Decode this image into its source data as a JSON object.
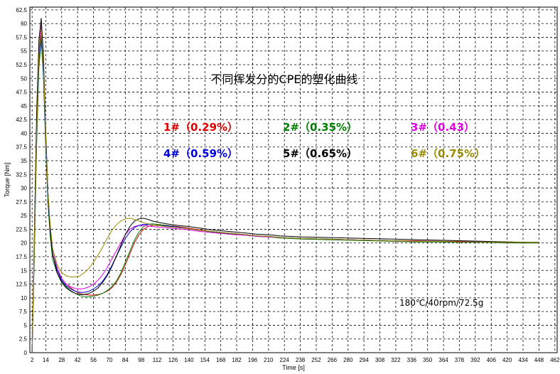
{
  "chart_data": {
    "type": "line",
    "title": "不同挥发分的CPE的塑化曲线",
    "xlabel": "Time [s]",
    "ylabel": "Torque [Nm]",
    "xlim": [
      0,
      464
    ],
    "ylim": [
      0,
      63
    ],
    "grid": true,
    "x_ticks": [
      "2",
      "14",
      "28",
      "42",
      "56",
      "70",
      "84",
      "98",
      "112",
      "126",
      "140",
      "154",
      "168",
      "182",
      "196",
      "210",
      "224",
      "238",
      "252",
      "266",
      "280",
      "294",
      "308",
      "322",
      "336",
      "350",
      "364",
      "378",
      "392",
      "406",
      "420",
      "434",
      "448",
      "462"
    ],
    "y_ticks": [
      "0",
      "2.5",
      "5",
      "7.5",
      "10",
      "12.5",
      "15",
      "17.5",
      "20",
      "22.5",
      "25",
      "27.5",
      "30",
      "32.5",
      "35",
      "37.5",
      "40",
      "42.5",
      "45",
      "47.5",
      "50",
      "52.5",
      "55",
      "57.5",
      "60",
      "62.5"
    ],
    "annotation": "180℃/40rpm/72.5g",
    "series": [
      {
        "name": "1#（0.29%）",
        "color": "#e00000",
        "x": [
          2,
          4,
          6,
          8,
          10,
          12,
          14,
          16,
          18,
          20,
          24,
          28,
          32,
          36,
          40,
          44,
          48,
          52,
          56,
          60,
          64,
          68,
          72,
          76,
          80,
          84,
          88,
          92,
          96,
          100,
          104,
          108,
          112,
          120,
          130,
          140,
          150,
          160,
          170,
          180,
          190,
          200,
          210,
          220,
          240,
          260,
          280,
          300,
          320,
          340,
          360,
          380,
          400,
          420,
          440,
          448
        ],
        "y": [
          0,
          20,
          40,
          54,
          59,
          52,
          38,
          28,
          22,
          18,
          15,
          13.5,
          12.5,
          11.8,
          11.2,
          10.8,
          10.6,
          10.5,
          10.5,
          10.6,
          10.8,
          11.2,
          11.8,
          12.8,
          14.2,
          16,
          18,
          20,
          21.5,
          22.5,
          23,
          23.2,
          23.3,
          23.2,
          23,
          22.7,
          22.4,
          22.1,
          21.9,
          21.7,
          21.5,
          21.3,
          21.2,
          21,
          20.8,
          20.7,
          20.6,
          20.5,
          20.4,
          20.4,
          20.3,
          20.3,
          20.2,
          20.2,
          20.1,
          20.1
        ]
      },
      {
        "name": "2#（0.35%）",
        "color": "#008000",
        "x": [
          2,
          4,
          6,
          8,
          10,
          12,
          14,
          16,
          18,
          20,
          24,
          28,
          32,
          36,
          40,
          44,
          48,
          52,
          56,
          60,
          64,
          68,
          72,
          76,
          80,
          84,
          88,
          92,
          96,
          100,
          104,
          108,
          112,
          120,
          130,
          140,
          150,
          160,
          170,
          180,
          190,
          200,
          210,
          220,
          240,
          260,
          280,
          300,
          320,
          340,
          360,
          380,
          400,
          420,
          440,
          448
        ],
        "y": [
          0,
          18,
          38,
          52,
          57,
          50,
          37,
          27,
          21,
          17,
          14.5,
          13,
          12,
          11.3,
          10.8,
          10.4,
          10.2,
          10.2,
          10.3,
          10.5,
          10.8,
          11.3,
          12,
          13,
          14.5,
          16.5,
          18.5,
          20.5,
          22,
          23,
          23.4,
          23.5,
          23.4,
          23.2,
          22.9,
          22.6,
          22.3,
          22,
          21.8,
          21.6,
          21.4,
          21.2,
          21.1,
          20.9,
          20.7,
          20.6,
          20.5,
          20.4,
          20.3,
          20.2,
          20.2,
          20.1,
          20.1,
          20,
          20,
          20
        ]
      },
      {
        "name": "3#（0.43）",
        "color": "#e000e0",
        "x": [
          2,
          4,
          6,
          8,
          10,
          12,
          14,
          16,
          18,
          20,
          24,
          28,
          32,
          36,
          40,
          44,
          48,
          52,
          56,
          60,
          64,
          68,
          72,
          76,
          80,
          84,
          88,
          92,
          96,
          100,
          104,
          108,
          112,
          120,
          130,
          140,
          150,
          160,
          170,
          180,
          190,
          200,
          210,
          220,
          240,
          260,
          280,
          300,
          320,
          340,
          360,
          380,
          400,
          420,
          440,
          448
        ],
        "y": [
          0,
          22,
          42,
          55,
          60,
          53,
          40,
          29,
          23,
          19,
          15.5,
          13.5,
          12.5,
          12,
          11.7,
          11.6,
          11.7,
          12,
          12.5,
          13.2,
          14.2,
          15.5,
          17,
          18.5,
          20,
          21.5,
          22.5,
          23,
          23.2,
          23.2,
          23.1,
          23,
          22.9,
          22.8,
          22.6,
          22.4,
          22.1,
          21.9,
          21.7,
          21.5,
          21.4,
          21.2,
          21.1,
          21,
          20.8,
          20.7,
          20.6,
          20.5,
          20.4,
          20.3,
          20.3,
          20.2,
          20.2,
          20.1,
          20.1,
          20.1
        ]
      },
      {
        "name": "4#（0.59%）",
        "color": "#0000e0",
        "x": [
          2,
          4,
          6,
          8,
          10,
          12,
          14,
          16,
          18,
          20,
          24,
          28,
          32,
          36,
          40,
          44,
          48,
          52,
          56,
          60,
          64,
          68,
          72,
          76,
          80,
          84,
          88,
          92,
          96,
          100,
          104,
          108,
          112,
          120,
          130,
          140,
          150,
          160,
          170,
          180,
          190,
          200,
          210,
          220,
          240,
          260,
          280,
          300,
          320,
          340,
          360,
          380,
          400,
          420,
          440,
          448
        ],
        "y": [
          0,
          20,
          40,
          53,
          58,
          51,
          38,
          28,
          22,
          18,
          15,
          13.2,
          12.2,
          11.6,
          11.2,
          11,
          11,
          11.2,
          11.6,
          12.2,
          13,
          14.2,
          15.8,
          17.5,
          19.2,
          20.8,
          22,
          22.8,
          23.2,
          23.4,
          23.4,
          23.3,
          23.2,
          23.1,
          22.9,
          22.6,
          22.3,
          22.1,
          21.9,
          21.7,
          21.5,
          21.3,
          21.2,
          21,
          20.8,
          20.7,
          20.6,
          20.5,
          20.4,
          20.3,
          20.3,
          20.2,
          20.2,
          20.1,
          20.1,
          20.1
        ]
      },
      {
        "name": "5#（0.65%）",
        "color": "#000000",
        "x": [
          2,
          4,
          6,
          8,
          10,
          12,
          14,
          16,
          18,
          20,
          24,
          28,
          32,
          36,
          40,
          44,
          48,
          52,
          56,
          60,
          64,
          68,
          72,
          76,
          80,
          84,
          88,
          92,
          96,
          100,
          104,
          108,
          112,
          120,
          130,
          140,
          150,
          160,
          170,
          180,
          190,
          200,
          210,
          220,
          240,
          260,
          280,
          300,
          320,
          340,
          360,
          380,
          400,
          420,
          440,
          448
        ],
        "y": [
          0,
          22,
          44,
          57,
          61,
          54,
          40,
          29,
          22,
          18,
          14.5,
          12.8,
          11.8,
          11.2,
          10.8,
          10.6,
          10.6,
          10.8,
          11.2,
          11.8,
          12.8,
          14,
          15.6,
          17.5,
          19.5,
          21.5,
          23,
          24,
          24.4,
          24.5,
          24.3,
          24,
          23.8,
          23.5,
          23.2,
          23,
          22.7,
          22.4,
          22.2,
          22,
          21.8,
          21.6,
          21.5,
          21.3,
          21.1,
          21,
          20.9,
          20.8,
          20.7,
          20.6,
          20.5,
          20.4,
          20.3,
          20.2,
          20.1,
          20.1
        ]
      },
      {
        "name": "6#（0.75%）",
        "color": "#9a8c00",
        "x": [
          2,
          4,
          6,
          8,
          10,
          12,
          14,
          16,
          18,
          20,
          24,
          28,
          32,
          36,
          40,
          44,
          48,
          52,
          56,
          60,
          64,
          68,
          72,
          76,
          80,
          84,
          88,
          92,
          96,
          100,
          104,
          108,
          112,
          120,
          130,
          140,
          150,
          160,
          170,
          180,
          190,
          200,
          210,
          220,
          240,
          260,
          280,
          300,
          320,
          340,
          360,
          380,
          400,
          420,
          440,
          448
        ],
        "y": [
          0,
          20,
          40,
          54,
          59,
          52,
          39,
          29,
          23,
          19,
          16,
          14.6,
          14,
          13.8,
          13.8,
          14,
          14.6,
          15.4,
          16.5,
          17.8,
          19.2,
          20.8,
          22.2,
          23.3,
          24,
          24.4,
          24.5,
          24.3,
          24,
          23.7,
          23.5,
          23.3,
          23.2,
          23,
          22.8,
          22.6,
          22.3,
          22.1,
          21.9,
          21.7,
          21.5,
          21.3,
          21.2,
          21,
          20.8,
          20.7,
          20.6,
          20.5,
          20.4,
          20.3,
          20.3,
          20.2,
          20.2,
          20.1,
          20.1,
          20.1
        ]
      }
    ]
  }
}
